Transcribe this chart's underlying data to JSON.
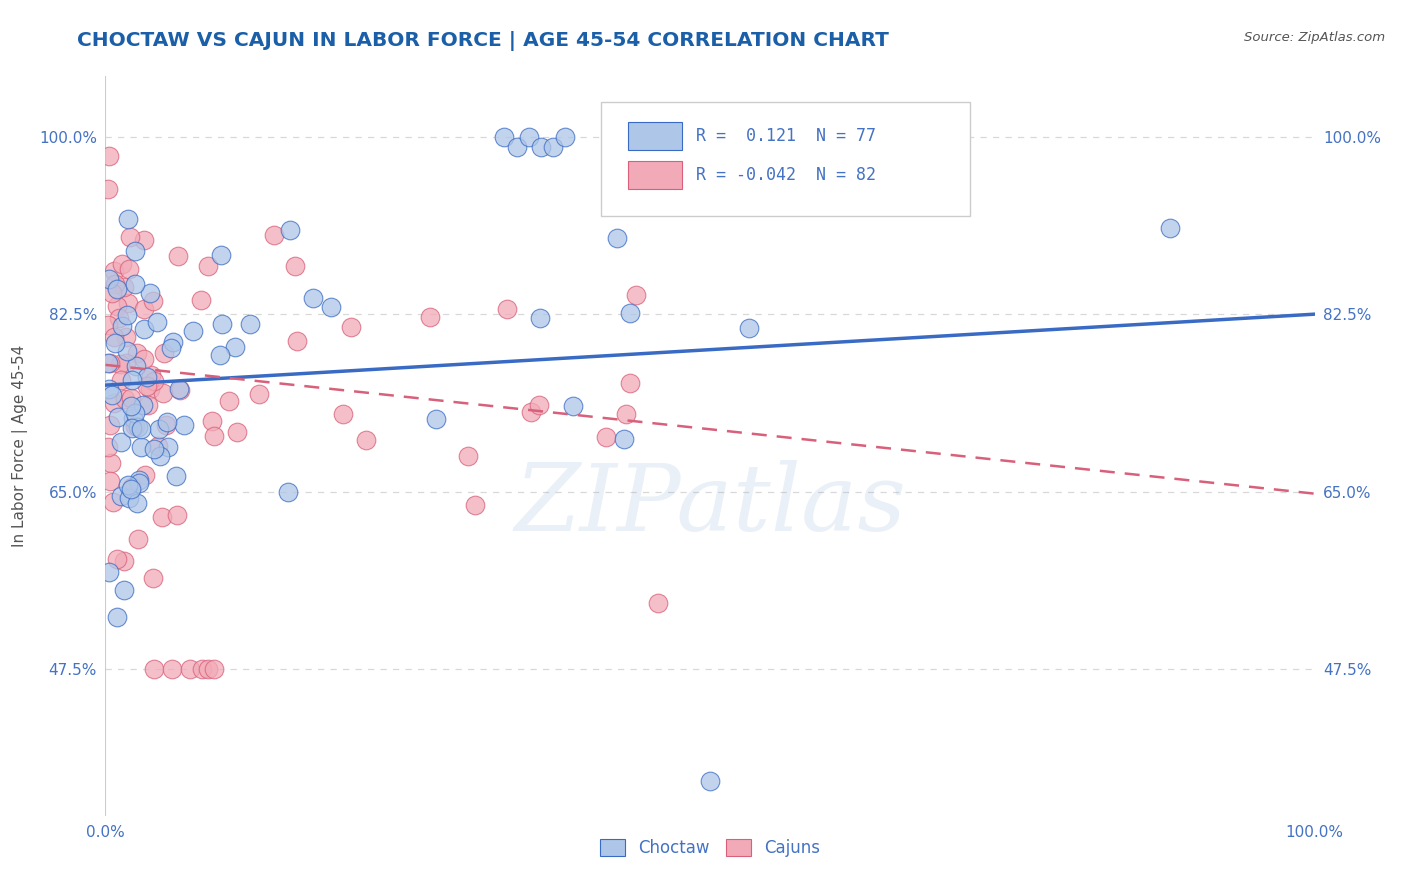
{
  "title": "CHOCTAW VS CAJUN IN LABOR FORCE | AGE 45-54 CORRELATION CHART",
  "source_text": "Source: ZipAtlas.com",
  "ylabel": "In Labor Force | Age 45-54",
  "xlim": [
    0.0,
    1.0
  ],
  "ylim": [
    0.33,
    1.06
  ],
  "yticks": [
    0.475,
    0.65,
    0.825,
    1.0
  ],
  "ytick_labels": [
    "47.5%",
    "65.0%",
    "82.5%",
    "100.0%"
  ],
  "choctaw_R": 0.121,
  "choctaw_N": 77,
  "cajun_R": -0.042,
  "cajun_N": 82,
  "choctaw_color": "#aec6e8",
  "cajun_color": "#f2aab8",
  "choctaw_line_color": "#3a6bc4",
  "cajun_line_color": "#d8607a",
  "watermark": "ZIPatlas",
  "background_color": "#ffffff",
  "grid_color": "#d8d8d8",
  "title_color": "#1a5fa8",
  "axis_label_color": "#555555",
  "tick_label_color": "#4472c4",
  "blue_line_y0": 0.755,
  "blue_line_y1": 0.825,
  "pink_line_y0": 0.775,
  "pink_line_y1": 0.648
}
